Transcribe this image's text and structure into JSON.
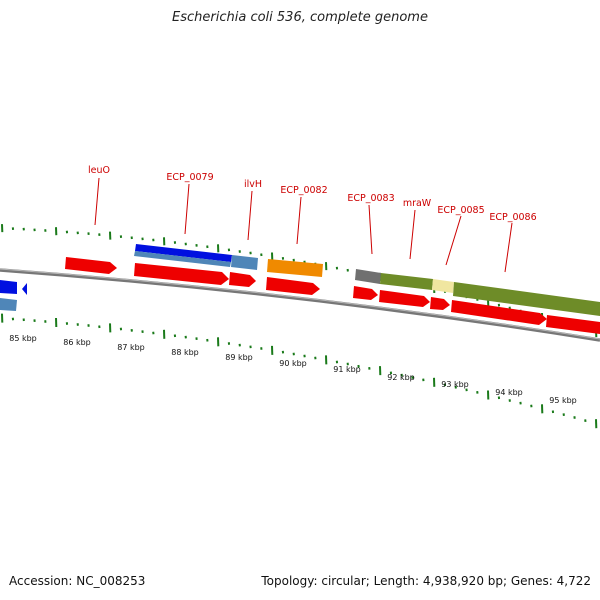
{
  "title": "Escherichia coli 536, complete genome",
  "accession": "Accession: NC_008253",
  "summary": "Topology: circular; Length: 4,938,920 bp; Genes: 4,722",
  "gene_labels": [
    "leuO",
    "ECP_0079",
    "ilvH",
    "ECP_0082",
    "ECP_0083",
    "mraW",
    "ECP_0085",
    "ECP_0086"
  ],
  "kbp_labels": [
    "85 kbp",
    "86 kbp",
    "87 kbp",
    "88 kbp",
    "89 kbp",
    "90 kbp",
    "91 kbp",
    "92 kbp",
    "93 kbp",
    "94 kbp",
    "95 kbp"
  ],
  "colors": {
    "gene": "#ee0000",
    "cds_blue": "#0010e0",
    "cds_steel": "#4f86b8",
    "cds_orange": "#f08a00",
    "cds_gray": "#707070",
    "cds_olive": "#6e8c28",
    "cds_yellow": "#f0e6a0",
    "tick": "#1a7a1a",
    "backbone": "#777777",
    "label": "#cc0000"
  }
}
